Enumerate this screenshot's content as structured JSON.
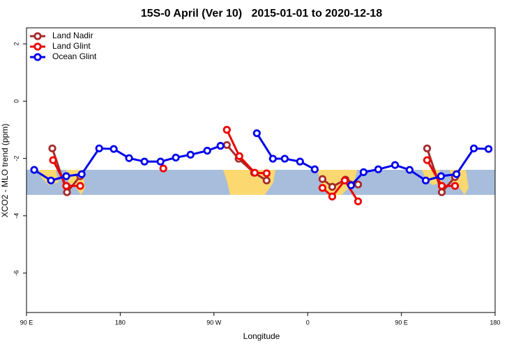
{
  "chart_data": {
    "type": "line",
    "title": "15S-0 April (Ver 10)   2015-01-01 to 2020-12-18",
    "x_label": "Longitude",
    "y_label": "XCO2 - MLO trend (ppm)",
    "xlim": [
      90,
      540
    ],
    "ylim": [
      -7.38,
      2.56
    ],
    "xticks": [
      {
        "value": 90,
        "label": "90 E"
      },
      180,
      {
        "value": 270,
        "label": "90 W"
      },
      {
        "value": 360,
        "label": "0"
      },
      {
        "value": 450,
        "label": "90 E"
      },
      {
        "value": 540,
        "label": "180"
      }
    ],
    "yticks": [
      2,
      0,
      -2,
      -4,
      -6
    ],
    "legend": "top-left",
    "series": [
      {
        "name": "Land Nadir",
        "color": "#a52a2a",
        "x": [
          114.8,
          128.9,
          141.6,
          null,
          282.4,
          293.7,
          308.5,
          320.6,
          null,
          374.2,
          383.6,
          396.3,
          408.4,
          null,
          474.7,
          488.8,
          501.5
        ],
        "values": [
          -1.65,
          -3.18,
          -2.62,
          null,
          -1.53,
          -2.01,
          -2.5,
          -2.77,
          null,
          -2.72,
          -2.99,
          -2.74,
          -2.91,
          null,
          -1.65,
          -3.18,
          -2.65
        ]
      },
      {
        "name": "Land Glint",
        "color": "#ee0000",
        "x": [
          115.5,
          128.2,
          141.6,
          null,
          221.4,
          null,
          282.4,
          294.4,
          309.2,
          320.6,
          null,
          374.2,
          383.6,
          395.6,
          408.4,
          null,
          474.7,
          488.8,
          501.5
        ],
        "values": [
          -2.06,
          -2.96,
          -2.96,
          null,
          -2.35,
          null,
          -1.0,
          -1.92,
          -2.5,
          -2.52,
          null,
          -3.03,
          -3.33,
          -2.77,
          -3.5,
          null,
          -2.06,
          -2.96,
          -2.96
        ]
      },
      {
        "name": "Ocean Glint",
        "color": "#0000ee",
        "x": [
          97.4,
          113.5,
          128.2,
          143,
          159.8,
          173.8,
          188.5,
          203.3,
          218.7,
          233.4,
          247.5,
          263.6,
          276.3,
          null,
          311.2,
          326.6,
          338,
          352.7,
          366.8,
          null,
          401.7,
          413.7,
          427.8,
          443.9,
          457.9,
          473.4,
          488.1,
          502.9,
          519.6,
          533.7
        ],
        "values": [
          -2.4,
          -2.77,
          -2.62,
          -2.55,
          -1.65,
          -1.67,
          -1.99,
          -2.11,
          -2.11,
          -1.97,
          -1.87,
          -1.73,
          -1.56,
          null,
          -1.12,
          -2.01,
          -2.01,
          -2.11,
          -2.38,
          null,
          -2.94,
          -2.48,
          -2.38,
          -2.23,
          -2.4,
          -2.77,
          -2.62,
          -2.55,
          -1.65,
          -1.67
        ]
      }
    ]
  }
}
